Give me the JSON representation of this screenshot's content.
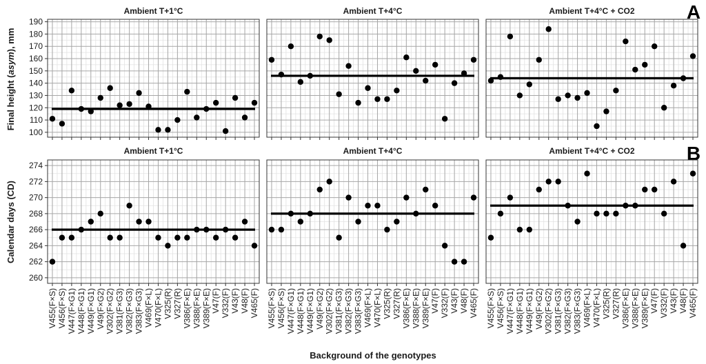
{
  "chart_data": [
    {
      "type": "scatter",
      "tag": "A",
      "ylabel": "Final height (asym), mm",
      "ylabel_parts": [
        "Final height (",
        "asym",
        "), mm"
      ],
      "ylim": [
        96,
        192
      ],
      "yticks": [
        100,
        110,
        120,
        130,
        140,
        150,
        160,
        170,
        180,
        190
      ],
      "grid": true,
      "categories": [
        "V455(F×S)",
        "V456(F×S)",
        "V447(F×G1)",
        "V448(F×G1)",
        "V449(F×G1)",
        "V49(F×G2)",
        "V302(F×G2)",
        "V381(F×G3)",
        "V382(F×G3)",
        "V383(F×G3)",
        "V469(F×L)",
        "V470(F×L)",
        "V325(R)",
        "V327(R)",
        "V386(F×E)",
        "V388(F×E)",
        "V389(F×E)",
        "V47(F)",
        "V332(F)",
        "V43(F)",
        "V48(F)",
        "V465(F)"
      ],
      "panels": [
        {
          "title": "Ambient T+1°C",
          "mean": 119,
          "values": [
            111,
            107,
            134,
            119,
            117,
            128,
            136,
            122,
            123,
            132,
            121,
            102,
            102,
            110,
            133,
            112,
            119,
            124,
            101,
            128,
            112,
            124
          ]
        },
        {
          "title": "Ambient T+4°C",
          "mean": 146,
          "values": [
            159,
            147,
            170,
            141,
            146,
            178,
            175,
            131,
            154,
            124,
            136,
            127,
            127,
            134,
            161,
            150,
            142,
            155,
            111,
            140,
            148,
            159
          ]
        },
        {
          "title": "Ambient T+4°C + CO2",
          "mean": 144,
          "values": [
            142,
            145,
            178,
            130,
            139,
            159,
            184,
            127,
            130,
            128,
            132,
            105,
            117,
            134,
            174,
            151,
            155,
            170,
            120,
            138,
            144,
            162
          ]
        }
      ]
    },
    {
      "type": "scatter",
      "tag": "B",
      "ylabel": "Calendar days (CD)",
      "xlabel": "Background of the genotypes",
      "ylim": [
        259.3,
        274.7
      ],
      "yticks": [
        260,
        262,
        264,
        266,
        268,
        270,
        272,
        274
      ],
      "grid": true,
      "categories": [
        "V455(F×S)",
        "V456(F×S)",
        "V447(F×G1)",
        "V448(F×G1)",
        "V449(F×G1)",
        "V49(F×G2)",
        "V302(F×G2)",
        "V381(F×G3)",
        "V382(F×G3)",
        "V383(F×G3)",
        "V469(F×L)",
        "V470(F×L)",
        "V325(R)",
        "V327(R)",
        "V386(F×E)",
        "V388(F×E)",
        "V389(F×E)",
        "V47(F)",
        "V332(F)",
        "V43(F)",
        "V48(F)",
        "V465(F)"
      ],
      "panels": [
        {
          "title": "Ambient T+1°C",
          "mean": 266,
          "values": [
            262,
            265,
            265,
            266,
            267,
            268,
            265,
            265,
            269,
            267,
            267,
            265,
            264,
            265,
            265,
            266,
            266,
            265,
            266,
            265,
            267,
            264
          ]
        },
        {
          "title": "Ambient T+4°C",
          "mean": 268,
          "values": [
            266,
            266,
            268,
            267,
            268,
            271,
            272,
            265,
            270,
            267,
            269,
            269,
            266,
            267,
            270,
            268,
            271,
            269,
            264,
            262,
            262,
            270
          ]
        },
        {
          "title": "Ambient T+4°C + CO2",
          "mean": 269,
          "values": [
            265,
            268,
            270,
            266,
            266,
            271,
            272,
            272,
            269,
            267,
            273,
            268,
            268,
            268,
            269,
            269,
            271,
            271,
            268,
            272,
            264,
            273
          ]
        }
      ]
    }
  ],
  "colors": {
    "points": "#000000",
    "mean_line": "#000000",
    "panel_border": "#333333",
    "grid_major": "#a6a6a6",
    "grid_minor": "#e2e2e2"
  }
}
